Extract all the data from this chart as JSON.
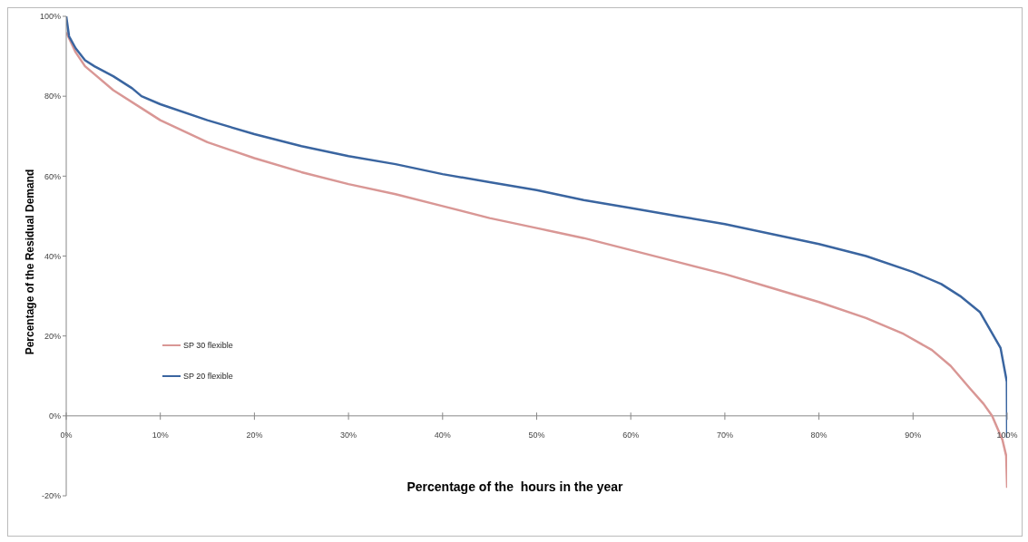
{
  "chart_data": {
    "type": "line",
    "xlabel": "Percentage of the  hours in the year",
    "ylabel": "Percentage of the Residual Demand",
    "xlim": [
      0,
      100
    ],
    "ylim": [
      -20,
      100
    ],
    "xticks": [
      {
        "value": 0,
        "label": "0%"
      },
      {
        "value": 10,
        "label": "10%"
      },
      {
        "value": 20,
        "label": "20%"
      },
      {
        "value": 30,
        "label": "30%"
      },
      {
        "value": 40,
        "label": "40%"
      },
      {
        "value": 50,
        "label": "50%"
      },
      {
        "value": 60,
        "label": "60%"
      },
      {
        "value": 70,
        "label": "70%"
      },
      {
        "value": 80,
        "label": "80%"
      },
      {
        "value": 90,
        "label": "90%"
      },
      {
        "value": 100,
        "label": "100%"
      }
    ],
    "yticks": [
      {
        "value": -20,
        "label": "-20%"
      },
      {
        "value": 0,
        "label": "0%"
      },
      {
        "value": 20,
        "label": "20%"
      },
      {
        "value": 40,
        "label": "40%"
      },
      {
        "value": 60,
        "label": "60%"
      },
      {
        "value": 80,
        "label": "80%"
      },
      {
        "value": 100,
        "label": "100%"
      }
    ],
    "grid": false,
    "legend": "left",
    "marker": "none",
    "line_style": "solid",
    "series": [
      {
        "name": "SP 30 flexible",
        "color": "#d99795",
        "x": [
          0,
          1,
          2,
          3,
          5,
          8,
          10,
          15,
          20,
          25,
          30,
          35,
          40,
          45,
          50,
          55,
          60,
          65,
          70,
          75,
          80,
          85,
          89,
          92,
          94,
          96,
          97.5,
          98.4,
          99.5,
          99.9,
          100
        ],
        "values": [
          96,
          91,
          87.5,
          85.5,
          81.5,
          77,
          74,
          68.5,
          64.5,
          61,
          58,
          55.5,
          52.5,
          49.5,
          47,
          44.5,
          41.5,
          38.5,
          35.5,
          32,
          28.5,
          24.5,
          20.5,
          16.5,
          12.5,
          7,
          3,
          0,
          -6,
          -10,
          -18
        ]
      },
      {
        "name": "SP 20 flexible",
        "color": "#3a65a0",
        "x": [
          0,
          0.3,
          1,
          2,
          3,
          5,
          7,
          8,
          10,
          15,
          20,
          25,
          30,
          35,
          40,
          45,
          50,
          55,
          60,
          65,
          70,
          75,
          80,
          85,
          90,
          93,
          95,
          97.1,
          99.3,
          99.97,
          100
        ],
        "values": [
          100,
          95,
          92,
          89,
          87.5,
          85,
          82,
          80,
          78,
          74,
          70.5,
          67.5,
          65,
          63,
          60.5,
          58.5,
          56.5,
          54,
          52,
          50,
          48,
          45.5,
          43,
          40,
          36,
          33,
          30,
          26,
          17,
          8.5,
          -5.5
        ]
      }
    ]
  }
}
